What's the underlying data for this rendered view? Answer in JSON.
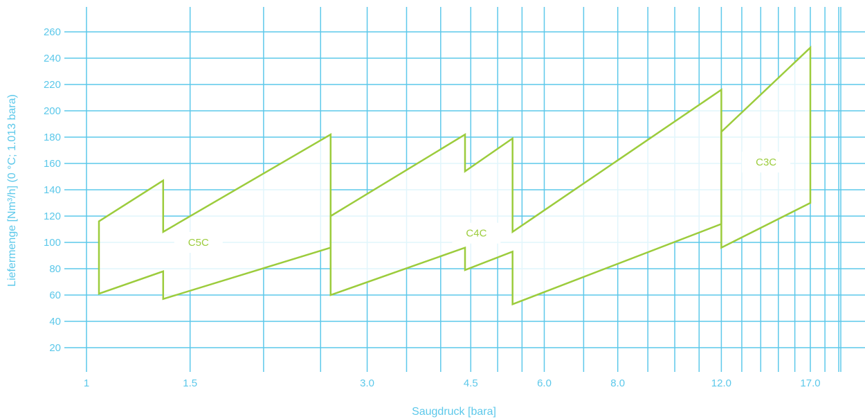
{
  "chart_data": {
    "type": "area",
    "title": "",
    "xlabel": "Saugdruck [bara]",
    "ylabel": "Liefermenge [Nm³/h] (0 °C; 1.013 bara)",
    "x_scale": "log",
    "xlim": [
      1,
      20
    ],
    "ylim": [
      0,
      270
    ],
    "grid": true,
    "x_ticks": [
      1,
      1.5,
      2,
      2.5,
      3,
      3.5,
      4,
      4.5,
      5,
      5.5,
      6,
      7,
      8,
      9,
      10,
      11,
      12,
      13,
      14,
      15,
      16,
      17,
      18,
      19
    ],
    "x_tick_labels": [
      {
        "value": 1,
        "label": "1"
      },
      {
        "value": 1.5,
        "label": "1.5"
      },
      {
        "value": 3,
        "label": "3.0"
      },
      {
        "value": 4.5,
        "label": "4.5"
      },
      {
        "value": 6,
        "label": "6.0"
      },
      {
        "value": 8,
        "label": "8.0"
      },
      {
        "value": 12,
        "label": "12.0"
      },
      {
        "value": 17,
        "label": "17.0"
      }
    ],
    "y_ticks": [
      20,
      40,
      60,
      80,
      100,
      120,
      140,
      160,
      180,
      200,
      220,
      240,
      260
    ],
    "series": [
      {
        "name": "C5C",
        "color": "#9ccc3c",
        "label_at": [
          1.55,
          100
        ],
        "polygon": [
          [
            1.05,
            116
          ],
          [
            1.35,
            147
          ],
          [
            1.35,
            108
          ],
          [
            2.6,
            182
          ],
          [
            2.6,
            96
          ],
          [
            1.35,
            57
          ],
          [
            1.35,
            78
          ],
          [
            1.05,
            61
          ]
        ]
      },
      {
        "name": "C4C",
        "color": "#9ccc3c",
        "label_at": [
          4.6,
          107
        ],
        "polygon": [
          [
            2.6,
            120
          ],
          [
            4.4,
            182
          ],
          [
            4.4,
            154
          ],
          [
            5.3,
            179
          ],
          [
            5.3,
            108
          ],
          [
            12,
            216
          ],
          [
            12,
            114
          ],
          [
            5.3,
            53
          ],
          [
            5.3,
            93
          ],
          [
            4.4,
            79
          ],
          [
            4.4,
            96
          ],
          [
            2.6,
            60
          ]
        ]
      },
      {
        "name": "C3C",
        "color": "#9ccc3c",
        "label_at": [
          14.3,
          161
        ],
        "polygon": [
          [
            12,
            184
          ],
          [
            17,
            248
          ],
          [
            17,
            130
          ],
          [
            12,
            96
          ]
        ]
      }
    ]
  }
}
